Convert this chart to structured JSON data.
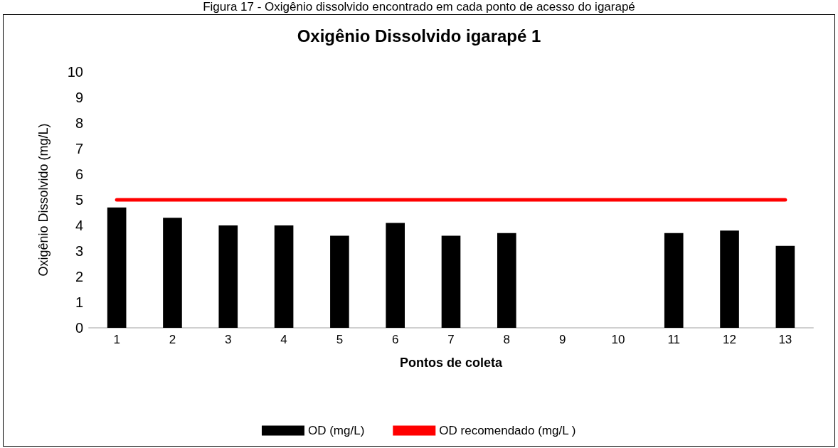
{
  "chart_data": {
    "type": "bar",
    "title": "Oxigênio Dissolvido igarapé 1",
    "xlabel": "Pontos de coleta",
    "ylabel": "Oxigênio Dissolvido (mg/L)",
    "annotations": [
      "Figura 17 - Oxigênio dissolvido encontrado em cada ponto de acesso do igarapé"
    ],
    "categories": [
      "1",
      "2",
      "3",
      "4",
      "5",
      "6",
      "7",
      "8",
      "9",
      "10",
      "11",
      "12",
      "13"
    ],
    "series": [
      {
        "name": "OD (mg/L)",
        "color": "#000000",
        "values": [
          4.7,
          4.3,
          4.0,
          4.0,
          3.6,
          4.1,
          3.6,
          3.7,
          null,
          null,
          3.7,
          3.8,
          3.2
        ]
      },
      {
        "name": "OD recomendado (mg/L )",
        "type": "line",
        "color": "#ff0000",
        "values": [
          5,
          5,
          5,
          5,
          5,
          5,
          5,
          5,
          5,
          5,
          5,
          5,
          5
        ]
      }
    ],
    "ylim": [
      0,
      10
    ],
    "yticks": [
      0,
      1,
      2,
      3,
      4,
      5,
      6,
      7,
      8,
      9,
      10
    ],
    "grid": false,
    "legend": "bottom",
    "marker": "none"
  }
}
